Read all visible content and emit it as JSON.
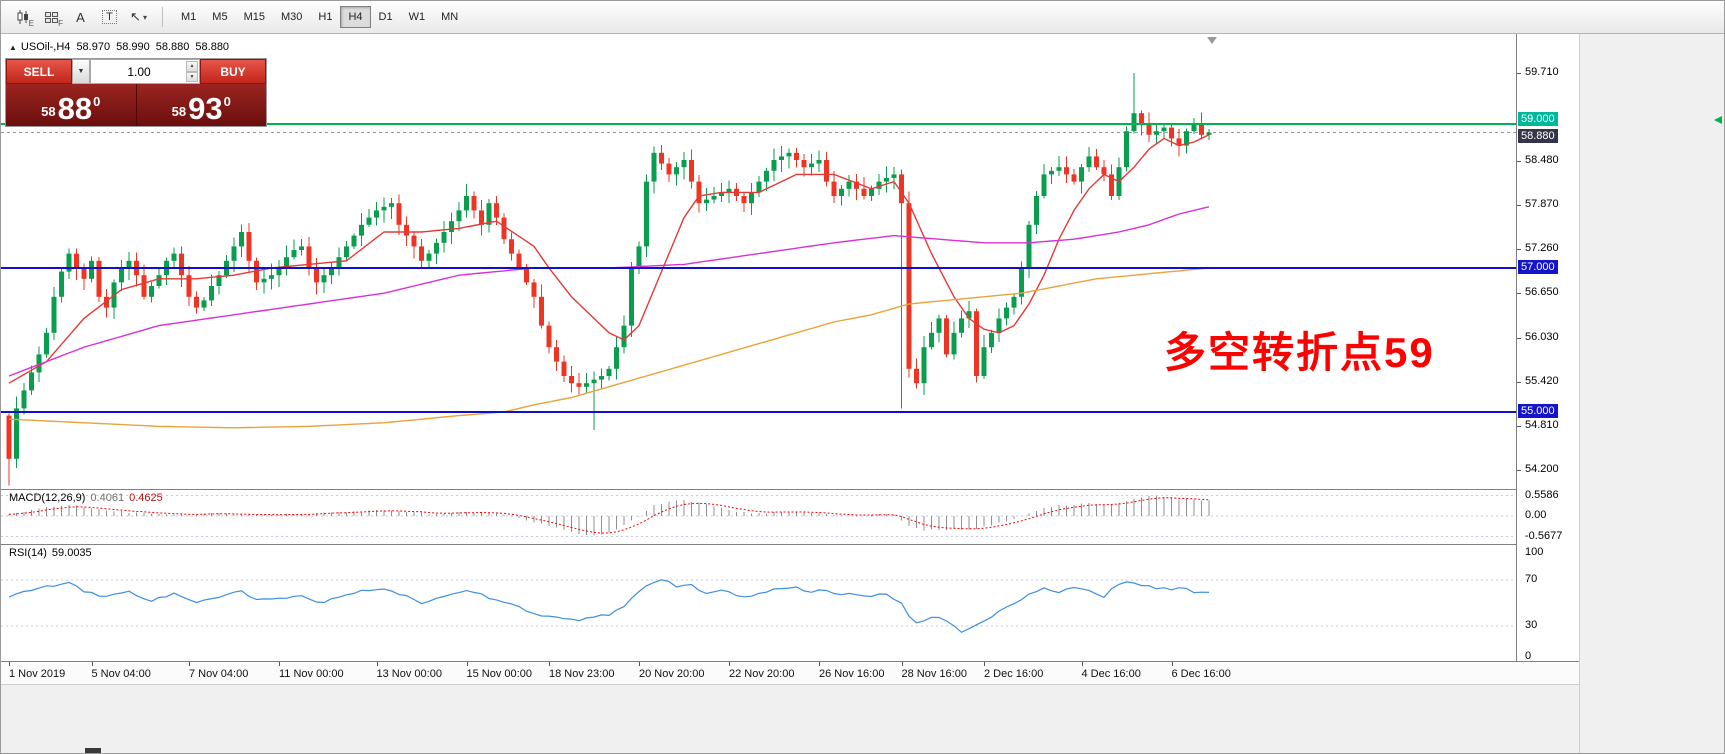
{
  "toolbar": {
    "icons": {
      "candles_sub": "E",
      "grid_sub": "F",
      "text_glyph": "A",
      "label_glyph": "T",
      "cursor_glyph": "↖",
      "dropdown_glyph": "▾"
    },
    "timeframes": [
      "M1",
      "M5",
      "M15",
      "M30",
      "H1",
      "H4",
      "D1",
      "W1",
      "MN"
    ],
    "active_timeframe": "H4"
  },
  "chart_header": {
    "collapse_glyph": "▲",
    "title": "USOil-,H4",
    "open": "58.970",
    "high": "58.990",
    "low": "58.880",
    "close": "58.880"
  },
  "trade_widget": {
    "sell_label": "SELL",
    "buy_label": "BUY",
    "volume": "1.00",
    "combo_glyph": "▼",
    "spin_up": "▲",
    "spin_down": "▼",
    "sell_price": {
      "small": "58",
      "big": "88",
      "sup": "0"
    },
    "buy_price": {
      "small": "58",
      "big": "93",
      "sup": "0"
    }
  },
  "annotation": {
    "text": "多空转折点59",
    "color": "#ff0000"
  },
  "hlines": [
    {
      "price": 58.88,
      "color": "#9a9a9a",
      "width": 1,
      "dash": true
    },
    {
      "price": 59.0,
      "color": "#00b34a",
      "width": 2,
      "dash": false
    },
    {
      "price": 57.0,
      "color": "#0f0fd0",
      "width": 2,
      "dash": false
    },
    {
      "price": 55.0,
      "color": "#0f0fd0",
      "width": 2,
      "dash": false
    }
  ],
  "price_scale": {
    "ticks": [
      "59.710",
      "58.480",
      "57.870",
      "57.260",
      "56.650",
      "56.030",
      "55.420",
      "54.810",
      "54.200"
    ],
    "tags": [
      {
        "label": "59.000",
        "price": 59.0,
        "bg": "#00b89a",
        "nudge": -4
      },
      {
        "label": "58.880",
        "price": 58.88,
        "bg": "#35354a",
        "nudge": 4
      },
      {
        "label": "57.000",
        "price": 57.0,
        "bg": "#1414c8",
        "nudge": 0
      },
      {
        "label": "55.000",
        "price": 55.0,
        "bg": "#1414c8",
        "nudge": 0
      }
    ]
  },
  "indicators": {
    "macd": {
      "name": "MACD(12,26,9)",
      "main": "0.4061",
      "signal": "0.4625",
      "scale": [
        {
          "label": "0.5586",
          "v": 0.5586
        },
        {
          "label": "0.00",
          "v": 0
        },
        {
          "label": "-0.5677",
          "v": -0.5677
        }
      ]
    },
    "rsi": {
      "name": "RSI(14)",
      "value": "59.0035",
      "scale": [
        {
          "label": "100",
          "v": 100
        },
        {
          "label": "70",
          "v": 70
        },
        {
          "label": "30",
          "v": 30
        },
        {
          "label": "0",
          "v": 0
        }
      ],
      "levels": [
        70,
        30
      ]
    }
  },
  "time_axis": {
    "labels": [
      {
        "text": "1 Nov 2019",
        "i": 0
      },
      {
        "text": "5 Nov 04:00",
        "i": 11
      },
      {
        "text": "7 Nov 04:00",
        "i": 24
      },
      {
        "text": "11 Nov 00:00",
        "i": 36
      },
      {
        "text": "13 Nov 00:00",
        "i": 49
      },
      {
        "text": "15 Nov 00:00",
        "i": 61
      },
      {
        "text": "18 Nov 23:00",
        "i": 72
      },
      {
        "text": "20 Nov 20:00",
        "i": 84
      },
      {
        "text": "22 Nov 20:00",
        "i": 96
      },
      {
        "text": "26 Nov 16:00",
        "i": 108
      },
      {
        "text": "28 Nov 16:00",
        "i": 119
      },
      {
        "text": "2 Dec 16:00",
        "i": 130
      },
      {
        "text": "4 Dec 16:00",
        "i": 143
      },
      {
        "text": "6 Dec 16:00",
        "i": 155
      }
    ]
  },
  "chart_data": {
    "type": "candlestick",
    "symbol": "USOil-",
    "timeframe": "H4",
    "title": "USOil-,H4",
    "last_ohlc": {
      "open": 58.97,
      "high": 58.99,
      "low": 58.88,
      "close": 58.88
    },
    "ylim": [
      53.93,
      60.25
    ],
    "grid": false,
    "colors": {
      "up": "#089e4e",
      "down": "#ee3524",
      "ma_red": "#e53935",
      "ma_magenta": "#d633d6",
      "ma_orange": "#e8a33c",
      "macd_hist": "#8f8f8f",
      "macd_signal": "#ff0000",
      "rsi": "#3d8fe0",
      "level_dash": "#c9c9dd"
    },
    "candles": {
      "first_open": 54.95,
      "closes": [
        54.35,
        55.05,
        55.3,
        55.55,
        55.8,
        56.1,
        56.6,
        56.95,
        57.2,
        57.0,
        56.85,
        57.1,
        56.6,
        56.45,
        56.8,
        57.0,
        57.1,
        56.9,
        56.6,
        56.75,
        56.9,
        57.1,
        57.2,
        56.9,
        56.6,
        56.45,
        56.55,
        56.75,
        56.9,
        57.1,
        57.3,
        57.5,
        57.1,
        56.8,
        56.85,
        56.9,
        57.0,
        57.15,
        57.25,
        57.3,
        57.0,
        56.8,
        56.9,
        57.0,
        57.15,
        57.3,
        57.45,
        57.6,
        57.7,
        57.8,
        57.85,
        57.9,
        57.6,
        57.45,
        57.3,
        57.1,
        57.2,
        57.35,
        57.5,
        57.65,
        57.8,
        58.0,
        57.8,
        57.6,
        57.9,
        57.7,
        57.4,
        57.2,
        57.0,
        56.8,
        56.6,
        56.2,
        55.9,
        55.7,
        55.5,
        55.4,
        55.35,
        55.4,
        55.45,
        55.5,
        55.6,
        55.9,
        56.2,
        57.0,
        57.3,
        58.2,
        58.6,
        58.45,
        58.3,
        58.4,
        58.5,
        58.2,
        57.9,
        57.95,
        58.0,
        58.05,
        58.1,
        58.0,
        57.9,
        58.05,
        58.2,
        58.35,
        58.5,
        58.55,
        58.6,
        58.5,
        58.4,
        58.45,
        58.5,
        58.2,
        58.0,
        58.1,
        58.2,
        58.1,
        58.0,
        58.1,
        58.2,
        58.25,
        58.3,
        57.9,
        55.6,
        55.4,
        55.9,
        56.1,
        56.3,
        55.8,
        56.1,
        56.3,
        56.4,
        55.5,
        55.9,
        56.1,
        56.3,
        56.45,
        56.6,
        57.0,
        57.6,
        58.0,
        58.3,
        58.35,
        58.4,
        58.3,
        58.2,
        58.4,
        58.55,
        58.4,
        58.3,
        58.0,
        58.4,
        58.9,
        59.15,
        59.0,
        58.85,
        58.9,
        58.95,
        58.8,
        58.7,
        58.9,
        59.0,
        58.85,
        58.88
      ],
      "wick_overrides": {
        "0": {
          "low": 53.98
        },
        "78": {
          "low": 54.75
        },
        "119": {
          "low": 55.05
        },
        "150": {
          "high": 59.71
        }
      }
    },
    "ma": {
      "red": [
        [
          0,
          55.4
        ],
        [
          5,
          55.7
        ],
        [
          10,
          56.3
        ],
        [
          15,
          56.7
        ],
        [
          20,
          56.85
        ],
        [
          25,
          56.85
        ],
        [
          30,
          56.9
        ],
        [
          35,
          57.0
        ],
        [
          40,
          57.05
        ],
        [
          45,
          57.1
        ],
        [
          50,
          57.5
        ],
        [
          55,
          57.5
        ],
        [
          60,
          57.55
        ],
        [
          65,
          57.65
        ],
        [
          70,
          57.3
        ],
        [
          72,
          57.0
        ],
        [
          75,
          56.6
        ],
        [
          78,
          56.3
        ],
        [
          80,
          56.1
        ],
        [
          82,
          56.0
        ],
        [
          84,
          56.2
        ],
        [
          86,
          56.7
        ],
        [
          88,
          57.2
        ],
        [
          90,
          57.7
        ],
        [
          92,
          58.0
        ],
        [
          95,
          58.05
        ],
        [
          100,
          58.05
        ],
        [
          105,
          58.3
        ],
        [
          110,
          58.3
        ],
        [
          115,
          58.1
        ],
        [
          118,
          58.2
        ],
        [
          120,
          57.9
        ],
        [
          123,
          57.2
        ],
        [
          126,
          56.6
        ],
        [
          128,
          56.3
        ],
        [
          130,
          56.15
        ],
        [
          132,
          56.1
        ],
        [
          134,
          56.2
        ],
        [
          136,
          56.5
        ],
        [
          138,
          56.9
        ],
        [
          140,
          57.4
        ],
        [
          142,
          57.8
        ],
        [
          144,
          58.1
        ],
        [
          146,
          58.3
        ],
        [
          148,
          58.2
        ],
        [
          150,
          58.4
        ],
        [
          152,
          58.65
        ],
        [
          154,
          58.8
        ],
        [
          156,
          58.7
        ],
        [
          158,
          58.75
        ],
        [
          160,
          58.85
        ]
      ],
      "magenta": [
        [
          0,
          55.5
        ],
        [
          10,
          55.9
        ],
        [
          20,
          56.2
        ],
        [
          30,
          56.35
        ],
        [
          40,
          56.5
        ],
        [
          50,
          56.65
        ],
        [
          60,
          56.9
        ],
        [
          70,
          57.0
        ],
        [
          80,
          57.0
        ],
        [
          90,
          57.05
        ],
        [
          100,
          57.2
        ],
        [
          110,
          57.35
        ],
        [
          118,
          57.45
        ],
        [
          124,
          57.4
        ],
        [
          130,
          57.35
        ],
        [
          136,
          57.35
        ],
        [
          142,
          57.4
        ],
        [
          148,
          57.5
        ],
        [
          152,
          57.6
        ],
        [
          156,
          57.75
        ],
        [
          160,
          57.85
        ]
      ],
      "orange": [
        [
          0,
          54.9
        ],
        [
          10,
          54.85
        ],
        [
          20,
          54.8
        ],
        [
          30,
          54.78
        ],
        [
          40,
          54.8
        ],
        [
          50,
          54.85
        ],
        [
          60,
          54.95
        ],
        [
          66,
          55.0
        ],
        [
          70,
          55.1
        ],
        [
          75,
          55.2
        ],
        [
          80,
          55.35
        ],
        [
          85,
          55.5
        ],
        [
          90,
          55.65
        ],
        [
          95,
          55.8
        ],
        [
          100,
          55.95
        ],
        [
          105,
          56.1
        ],
        [
          110,
          56.25
        ],
        [
          115,
          56.35
        ],
        [
          120,
          56.5
        ],
        [
          125,
          56.55
        ],
        [
          130,
          56.6
        ],
        [
          135,
          56.65
        ],
        [
          140,
          56.75
        ],
        [
          145,
          56.85
        ],
        [
          150,
          56.9
        ],
        [
          155,
          56.95
        ],
        [
          160,
          57.0
        ]
      ]
    },
    "macd": [
      [
        0,
        0.05
      ],
      [
        4,
        0.2
      ],
      [
        8,
        0.3
      ],
      [
        12,
        0.18
      ],
      [
        16,
        0.1
      ],
      [
        20,
        0.06
      ],
      [
        24,
        0.03
      ],
      [
        28,
        0.07
      ],
      [
        32,
        0.04
      ],
      [
        36,
        0.03
      ],
      [
        40,
        0.05
      ],
      [
        44,
        0.1
      ],
      [
        48,
        0.16
      ],
      [
        52,
        0.14
      ],
      [
        56,
        0.06
      ],
      [
        60,
        0.1
      ],
      [
        64,
        0.09
      ],
      [
        68,
        -0.04
      ],
      [
        72,
        -0.28
      ],
      [
        76,
        -0.48
      ],
      [
        78,
        -0.55
      ],
      [
        80,
        -0.45
      ],
      [
        82,
        -0.25
      ],
      [
        84,
        0.0
      ],
      [
        86,
        0.28
      ],
      [
        88,
        0.4
      ],
      [
        90,
        0.44
      ],
      [
        92,
        0.36
      ],
      [
        94,
        0.26
      ],
      [
        96,
        0.16
      ],
      [
        98,
        0.1
      ],
      [
        100,
        0.07
      ],
      [
        102,
        0.1
      ],
      [
        104,
        0.12
      ],
      [
        106,
        0.1
      ],
      [
        108,
        0.08
      ],
      [
        110,
        0.03
      ],
      [
        112,
        0.0
      ],
      [
        114,
        0.02
      ],
      [
        116,
        0.04
      ],
      [
        118,
        0.02
      ],
      [
        120,
        -0.28
      ],
      [
        122,
        -0.4
      ],
      [
        124,
        -0.38
      ],
      [
        126,
        -0.34
      ],
      [
        128,
        -0.37
      ],
      [
        130,
        -0.3
      ],
      [
        132,
        -0.2
      ],
      [
        134,
        -0.08
      ],
      [
        136,
        0.08
      ],
      [
        138,
        0.22
      ],
      [
        140,
        0.3
      ],
      [
        142,
        0.32
      ],
      [
        144,
        0.34
      ],
      [
        146,
        0.3
      ],
      [
        148,
        0.36
      ],
      [
        150,
        0.48
      ],
      [
        152,
        0.56
      ],
      [
        154,
        0.52
      ],
      [
        156,
        0.47
      ],
      [
        158,
        0.44
      ],
      [
        160,
        0.4061
      ]
    ],
    "rsi": [
      [
        0,
        55
      ],
      [
        3,
        62
      ],
      [
        6,
        65
      ],
      [
        8,
        67
      ],
      [
        10,
        60
      ],
      [
        13,
        55
      ],
      [
        16,
        60
      ],
      [
        19,
        52
      ],
      [
        22,
        58
      ],
      [
        25,
        50
      ],
      [
        28,
        55
      ],
      [
        31,
        60
      ],
      [
        33,
        52
      ],
      [
        36,
        54
      ],
      [
        39,
        57
      ],
      [
        41,
        50
      ],
      [
        44,
        54
      ],
      [
        47,
        60
      ],
      [
        50,
        63
      ],
      [
        53,
        56
      ],
      [
        55,
        50
      ],
      [
        58,
        55
      ],
      [
        61,
        60
      ],
      [
        64,
        55
      ],
      [
        66,
        50
      ],
      [
        68,
        46
      ],
      [
        70,
        42
      ],
      [
        72,
        38
      ],
      [
        74,
        36
      ],
      [
        76,
        35
      ],
      [
        78,
        37
      ],
      [
        80,
        40
      ],
      [
        82,
        48
      ],
      [
        84,
        60
      ],
      [
        86,
        68
      ],
      [
        87,
        70
      ],
      [
        89,
        65
      ],
      [
        91,
        66
      ],
      [
        93,
        58
      ],
      [
        95,
        60
      ],
      [
        97,
        57
      ],
      [
        99,
        55
      ],
      [
        101,
        60
      ],
      [
        103,
        62
      ],
      [
        105,
        63
      ],
      [
        107,
        60
      ],
      [
        109,
        62
      ],
      [
        111,
        56
      ],
      [
        113,
        58
      ],
      [
        115,
        56
      ],
      [
        117,
        58
      ],
      [
        119,
        50
      ],
      [
        120,
        38
      ],
      [
        121,
        32
      ],
      [
        122,
        35
      ],
      [
        124,
        38
      ],
      [
        126,
        30
      ],
      [
        127,
        25
      ],
      [
        128,
        28
      ],
      [
        130,
        35
      ],
      [
        132,
        42
      ],
      [
        134,
        50
      ],
      [
        136,
        58
      ],
      [
        138,
        62
      ],
      [
        140,
        60
      ],
      [
        142,
        64
      ],
      [
        144,
        60
      ],
      [
        146,
        56
      ],
      [
        148,
        66
      ],
      [
        150,
        68
      ],
      [
        152,
        64
      ],
      [
        154,
        62
      ],
      [
        156,
        63
      ],
      [
        158,
        60
      ],
      [
        160,
        59
      ]
    ]
  }
}
